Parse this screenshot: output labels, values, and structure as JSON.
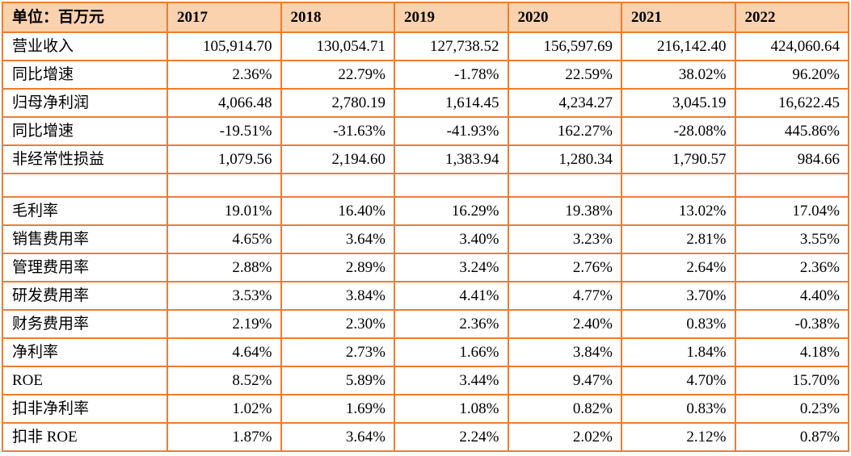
{
  "colors": {
    "border": "#ED7D31",
    "header_bg": "#FBD2AE",
    "text": "#000000",
    "page_bg": "#FFFFFF"
  },
  "header": {
    "unit_label": "单位：百万元",
    "years": [
      "2017",
      "2018",
      "2019",
      "2020",
      "2021",
      "2022"
    ]
  },
  "rows": [
    {
      "label": "营业收入",
      "values": [
        "105,914.70",
        "130,054.71",
        "127,738.52",
        "156,597.69",
        "216,142.40",
        "424,060.64"
      ]
    },
    {
      "label": "同比增速",
      "values": [
        "2.36%",
        "22.79%",
        "-1.78%",
        "22.59%",
        "38.02%",
        "96.20%"
      ]
    },
    {
      "label": "归母净利润",
      "values": [
        "4,066.48",
        "2,780.19",
        "1,614.45",
        "4,234.27",
        "3,045.19",
        "16,622.45"
      ]
    },
    {
      "label": "同比增速",
      "values": [
        "-19.51%",
        "-31.63%",
        "-41.93%",
        "162.27%",
        "-28.08%",
        "445.86%"
      ]
    },
    {
      "label": "非经常性损益",
      "values": [
        "1,079.56",
        "2,194.60",
        "1,383.94",
        "1,280.34",
        "1,790.57",
        "984.66"
      ]
    },
    {
      "label": "",
      "values": [
        "",
        "",
        "",
        "",
        "",
        ""
      ]
    },
    {
      "label": "毛利率",
      "values": [
        "19.01%",
        "16.40%",
        "16.29%",
        "19.38%",
        "13.02%",
        "17.04%"
      ]
    },
    {
      "label": "销售费用率",
      "values": [
        "4.65%",
        "3.64%",
        "3.40%",
        "3.23%",
        "2.81%",
        "3.55%"
      ]
    },
    {
      "label": "管理费用率",
      "values": [
        "2.88%",
        "2.89%",
        "3.24%",
        "2.76%",
        "2.64%",
        "2.36%"
      ]
    },
    {
      "label": "研发费用率",
      "values": [
        "3.53%",
        "3.84%",
        "4.41%",
        "4.77%",
        "3.70%",
        "4.40%"
      ]
    },
    {
      "label": "财务费用率",
      "values": [
        "2.19%",
        "2.30%",
        "2.36%",
        "2.40%",
        "0.83%",
        "-0.38%"
      ]
    },
    {
      "label": "净利率",
      "values": [
        "4.64%",
        "2.73%",
        "1.66%",
        "3.84%",
        "1.84%",
        "4.18%"
      ]
    },
    {
      "label": "ROE",
      "values": [
        "8.52%",
        "5.89%",
        "3.44%",
        "9.47%",
        "4.70%",
        "15.70%"
      ]
    },
    {
      "label": "扣非净利率",
      "values": [
        "1.02%",
        "1.69%",
        "1.08%",
        "0.82%",
        "0.83%",
        "0.23%"
      ]
    },
    {
      "label": "扣非 ROE",
      "values": [
        "1.87%",
        "3.64%",
        "2.24%",
        "2.02%",
        "2.12%",
        "0.87%"
      ]
    }
  ]
}
